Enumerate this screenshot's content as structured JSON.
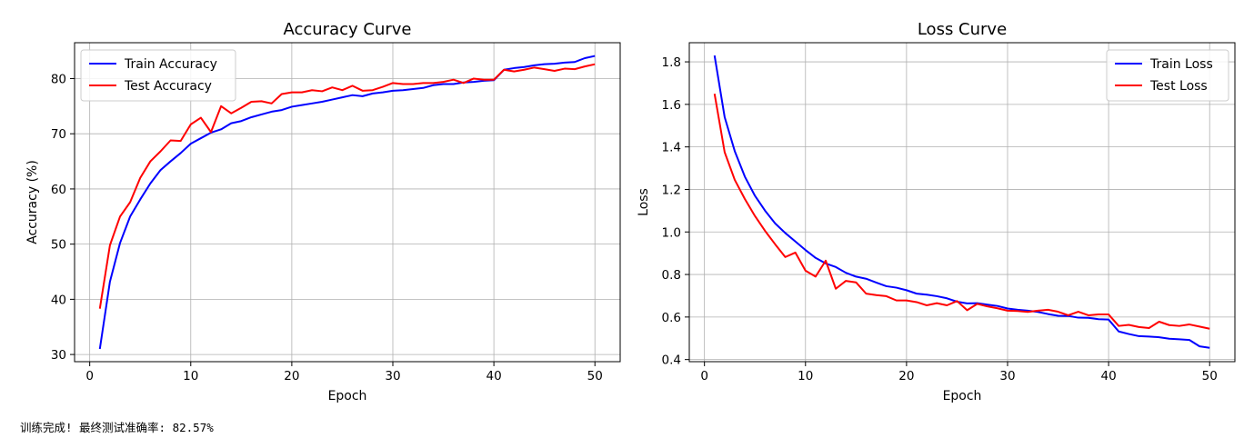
{
  "status_text": "训练完成! 最终测试准确率: 82.57%",
  "chart_data": [
    {
      "type": "line",
      "title": "Accuracy Curve",
      "xlabel": "Epoch",
      "ylabel": "Accuracy (%)",
      "xlim": [
        -1.5,
        52.5
      ],
      "ylim": [
        28.7,
        86.5
      ],
      "xticks": [
        0,
        10,
        20,
        30,
        40,
        50
      ],
      "yticks": [
        30,
        40,
        50,
        60,
        70,
        80
      ],
      "grid": true,
      "legend_position": "upper-left",
      "x": [
        1,
        2,
        3,
        4,
        5,
        6,
        7,
        8,
        9,
        10,
        11,
        12,
        13,
        14,
        15,
        16,
        17,
        18,
        19,
        20,
        21,
        22,
        23,
        24,
        25,
        26,
        27,
        28,
        29,
        30,
        31,
        32,
        33,
        34,
        35,
        36,
        37,
        38,
        39,
        40,
        41,
        42,
        43,
        44,
        45,
        46,
        47,
        48,
        49,
        50
      ],
      "series": [
        {
          "name": "Train Accuracy",
          "color": "#0000ff",
          "values": [
            31.0,
            43.2,
            50.2,
            55.0,
            58.1,
            61.0,
            63.4,
            65.0,
            66.5,
            68.2,
            69.2,
            70.2,
            70.8,
            71.9,
            72.3,
            73.0,
            73.5,
            74.0,
            74.3,
            74.9,
            75.2,
            75.5,
            75.8,
            76.2,
            76.6,
            77.0,
            76.8,
            77.3,
            77.5,
            77.8,
            77.9,
            78.1,
            78.3,
            78.8,
            79.0,
            79.0,
            79.3,
            79.4,
            79.6,
            79.7,
            81.6,
            81.9,
            82.1,
            82.4,
            82.6,
            82.7,
            82.9,
            83.0,
            83.7,
            84.1
          ]
        },
        {
          "name": "Test Accuracy",
          "color": "#ff0000",
          "values": [
            38.3,
            49.8,
            55.0,
            57.6,
            62.0,
            65.0,
            66.8,
            68.8,
            68.7,
            71.7,
            72.9,
            70.3,
            75.0,
            73.7,
            74.7,
            75.8,
            75.9,
            75.5,
            77.2,
            77.5,
            77.5,
            77.9,
            77.7,
            78.4,
            77.9,
            78.7,
            77.8,
            77.9,
            78.5,
            79.2,
            79.0,
            79.0,
            79.2,
            79.2,
            79.4,
            79.8,
            79.2,
            80.0,
            79.8,
            79.8,
            81.6,
            81.3,
            81.6,
            82.0,
            81.7,
            81.4,
            81.8,
            81.7,
            82.2,
            82.6
          ]
        }
      ]
    },
    {
      "type": "line",
      "title": "Loss Curve",
      "xlabel": "Epoch",
      "ylabel": "Loss",
      "xlim": [
        -1.5,
        52.5
      ],
      "ylim": [
        0.39,
        1.89
      ],
      "xticks": [
        0,
        10,
        20,
        30,
        40,
        50
      ],
      "yticks": [
        0.4,
        0.6,
        0.8,
        1.0,
        1.2,
        1.4,
        1.6,
        1.8
      ],
      "ytick_labels": [
        "0.4",
        "0.6",
        "0.8",
        "1.0",
        "1.2",
        "1.4",
        "1.6",
        "1.8"
      ],
      "grid": true,
      "legend_position": "upper-right",
      "x": [
        1,
        2,
        3,
        4,
        5,
        6,
        7,
        8,
        9,
        10,
        11,
        12,
        13,
        14,
        15,
        16,
        17,
        18,
        19,
        20,
        21,
        22,
        23,
        24,
        25,
        26,
        27,
        28,
        29,
        30,
        31,
        32,
        33,
        34,
        35,
        36,
        37,
        38,
        39,
        40,
        41,
        42,
        43,
        44,
        45,
        46,
        47,
        48,
        49,
        50
      ],
      "series": [
        {
          "name": "Train Loss",
          "color": "#0000ff",
          "values": [
            1.83,
            1.54,
            1.38,
            1.26,
            1.17,
            1.1,
            1.04,
            0.995,
            0.955,
            0.915,
            0.878,
            0.852,
            0.835,
            0.808,
            0.79,
            0.78,
            0.762,
            0.745,
            0.738,
            0.726,
            0.71,
            0.705,
            0.698,
            0.688,
            0.672,
            0.664,
            0.665,
            0.658,
            0.652,
            0.64,
            0.634,
            0.63,
            0.624,
            0.614,
            0.606,
            0.605,
            0.597,
            0.596,
            0.59,
            0.588,
            0.532,
            0.52,
            0.51,
            0.508,
            0.505,
            0.498,
            0.495,
            0.492,
            0.462,
            0.455
          ]
        },
        {
          "name": "Test Loss",
          "color": "#ff0000",
          "values": [
            1.65,
            1.375,
            1.245,
            1.155,
            1.075,
            1.005,
            0.942,
            0.882,
            0.903,
            0.818,
            0.79,
            0.865,
            0.733,
            0.77,
            0.763,
            0.71,
            0.703,
            0.698,
            0.678,
            0.678,
            0.67,
            0.655,
            0.665,
            0.655,
            0.675,
            0.632,
            0.662,
            0.65,
            0.641,
            0.63,
            0.628,
            0.624,
            0.63,
            0.634,
            0.625,
            0.608,
            0.625,
            0.608,
            0.612,
            0.612,
            0.558,
            0.563,
            0.553,
            0.548,
            0.578,
            0.562,
            0.558,
            0.565,
            0.555,
            0.545
          ]
        }
      ]
    }
  ]
}
